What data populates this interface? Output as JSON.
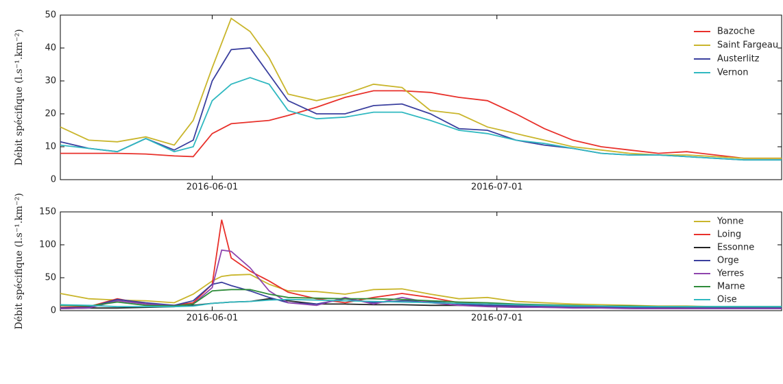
{
  "chart_data": [
    {
      "type": "line",
      "ylabel": "Débit  spécifique (l.s⁻¹.km⁻²)",
      "x": [
        "2016-05-16",
        "2016-05-19",
        "2016-05-22",
        "2016-05-25",
        "2016-05-28",
        "2016-05-30",
        "2016-06-01",
        "2016-06-03",
        "2016-06-05",
        "2016-06-07",
        "2016-06-09",
        "2016-06-12",
        "2016-06-15",
        "2016-06-18",
        "2016-06-21",
        "2016-06-24",
        "2016-06-27",
        "2016-06-30",
        "2016-07-03",
        "2016-07-06",
        "2016-07-09",
        "2016-07-12",
        "2016-07-15",
        "2016-07-18",
        "2016-07-21",
        "2016-07-24",
        "2016-07-27",
        "2016-07-31"
      ],
      "xlim": [
        "2016-05-16",
        "2016-07-31"
      ],
      "xticks": [
        "2016-06-01",
        "2016-07-01"
      ],
      "ylim": [
        0,
        50
      ],
      "yticks": [
        0,
        10,
        20,
        30,
        40,
        50
      ],
      "legend": "upper right",
      "series": [
        {
          "name": "Bazoche",
          "color": "#e8302a",
          "values": [
            8,
            8,
            8,
            7.8,
            7.2,
            7,
            14,
            17,
            17.5,
            18,
            19.5,
            22,
            25,
            27,
            27,
            26.5,
            25,
            24,
            20,
            15.5,
            12,
            10,
            9,
            8,
            8.5,
            7.5,
            6.5,
            6.5
          ]
        },
        {
          "name": "Saint Fargeau",
          "color": "#c9b52b",
          "values": [
            16,
            12,
            11.5,
            13,
            10.5,
            18,
            34,
            49,
            45,
            37,
            26,
            24,
            26,
            29,
            28,
            21,
            20,
            16,
            14,
            12,
            10,
            9,
            8,
            7.5,
            7.5,
            7,
            6.5,
            6.5
          ]
        },
        {
          "name": "Austerlitz",
          "color": "#3a3f9e",
          "values": [
            11.5,
            9.5,
            8.5,
            12.5,
            9,
            12,
            30,
            39.5,
            40,
            32,
            24,
            20,
            20,
            22.5,
            23,
            20,
            15.5,
            15,
            12,
            10.5,
            9.5,
            8,
            7.5,
            7.5,
            7,
            6.5,
            6,
            6
          ]
        },
        {
          "name": "Vernon",
          "color": "#2fb8c0",
          "values": [
            10.5,
            9.5,
            8.5,
            12.5,
            8.5,
            10,
            24,
            29,
            31,
            29,
            21,
            18.5,
            19,
            20.5,
            20.5,
            18,
            15,
            14,
            12,
            11,
            9.5,
            8,
            7.5,
            7.5,
            7,
            6.5,
            6,
            6
          ]
        }
      ]
    },
    {
      "type": "line",
      "ylabel": "Débit  spécifique (l.s⁻¹.km⁻²)",
      "x": [
        "2016-05-16",
        "2016-05-19",
        "2016-05-22",
        "2016-05-25",
        "2016-05-28",
        "2016-05-30",
        "2016-06-01",
        "2016-06-02",
        "2016-06-03",
        "2016-06-05",
        "2016-06-07",
        "2016-06-09",
        "2016-06-12",
        "2016-06-15",
        "2016-06-18",
        "2016-06-21",
        "2016-06-24",
        "2016-06-27",
        "2016-06-30",
        "2016-07-03",
        "2016-07-06",
        "2016-07-09",
        "2016-07-12",
        "2016-07-15",
        "2016-07-18",
        "2016-07-21",
        "2016-07-24",
        "2016-07-27",
        "2016-07-31"
      ],
      "xlim": [
        "2016-05-16",
        "2016-07-31"
      ],
      "xticks": [
        "2016-06-01",
        "2016-07-01"
      ],
      "ylim": [
        0,
        150
      ],
      "yticks": [
        0,
        50,
        100,
        150
      ],
      "legend": "upper right",
      "series": [
        {
          "name": "Yonne",
          "color": "#c9b52b",
          "values": [
            26,
            18,
            16,
            15,
            12,
            25,
            45,
            52,
            54,
            55,
            40,
            30,
            29,
            25,
            32,
            33,
            25,
            18,
            20,
            14,
            12,
            10,
            9,
            8,
            7,
            7,
            6,
            6,
            6
          ]
        },
        {
          "name": "Loing",
          "color": "#e8302a",
          "values": [
            5,
            6,
            18,
            10,
            8,
            12,
            40,
            138,
            80,
            60,
            45,
            28,
            18,
            12,
            20,
            26,
            20,
            12,
            10,
            8,
            7,
            6,
            5,
            5,
            5,
            4,
            4,
            4,
            4
          ]
        },
        {
          "name": "Essonne",
          "color": "#222222",
          "values": [
            3,
            4,
            4,
            5,
            6,
            8,
            11,
            12,
            13,
            14,
            18,
            15,
            10,
            10,
            9,
            9,
            8,
            8,
            7,
            6,
            5,
            5,
            5,
            5,
            4,
            4,
            4,
            4,
            4
          ]
        },
        {
          "name": "Orge",
          "color": "#3a3f9e",
          "values": [
            4,
            5,
            17,
            12,
            8,
            15,
            40,
            43,
            38,
            30,
            20,
            12,
            10,
            18,
            12,
            15,
            14,
            10,
            8,
            7,
            6,
            5,
            5,
            5,
            4,
            4,
            4,
            4,
            4
          ]
        },
        {
          "name": "Yerres",
          "color": "#8e44ad",
          "values": [
            3,
            4,
            15,
            10,
            7,
            10,
            35,
            92,
            90,
            65,
            30,
            12,
            8,
            20,
            10,
            20,
            12,
            8,
            6,
            5,
            5,
            4,
            4,
            3,
            3,
            3,
            3,
            3,
            3
          ]
        },
        {
          "name": "Marne",
          "color": "#2e8b3a",
          "values": [
            8,
            7,
            13,
            8,
            7,
            10,
            30,
            31,
            32,
            32,
            25,
            20,
            19,
            18,
            18,
            17,
            15,
            13,
            12,
            10,
            9,
            8,
            7,
            7,
            6,
            6,
            6,
            6,
            6
          ]
        },
        {
          "name": "Oise",
          "color": "#2fb8c0",
          "values": [
            9,
            8,
            6,
            6,
            6,
            7,
            11,
            12,
            13,
            14,
            16,
            17,
            16,
            15,
            14,
            13,
            12,
            11,
            10,
            9,
            8,
            7,
            7,
            6,
            6,
            6,
            6,
            6,
            6
          ]
        }
      ]
    }
  ]
}
